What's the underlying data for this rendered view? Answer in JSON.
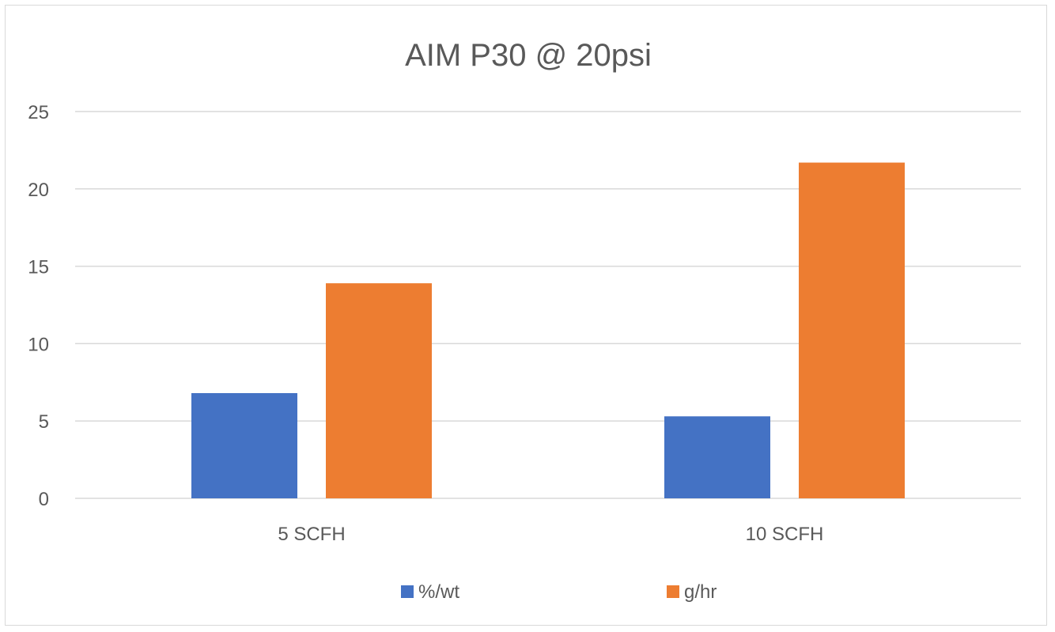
{
  "chart_data": {
    "type": "bar",
    "title": "AIM P30 @ 20psi",
    "xlabel": "",
    "ylabel": "",
    "categories": [
      "5 SCFH",
      "10 SCFH"
    ],
    "series": [
      {
        "name": "%/wt",
        "values": [
          6.8,
          5.3
        ],
        "color": "#4472C4"
      },
      {
        "name": "g/hr",
        "values": [
          13.9,
          21.7
        ],
        "color": "#ED7D31"
      }
    ],
    "ylim": [
      0,
      25
    ],
    "yticks": [
      "0",
      "5",
      "10",
      "15",
      "20",
      "25"
    ],
    "grid": true,
    "legend_position": "bottom"
  }
}
